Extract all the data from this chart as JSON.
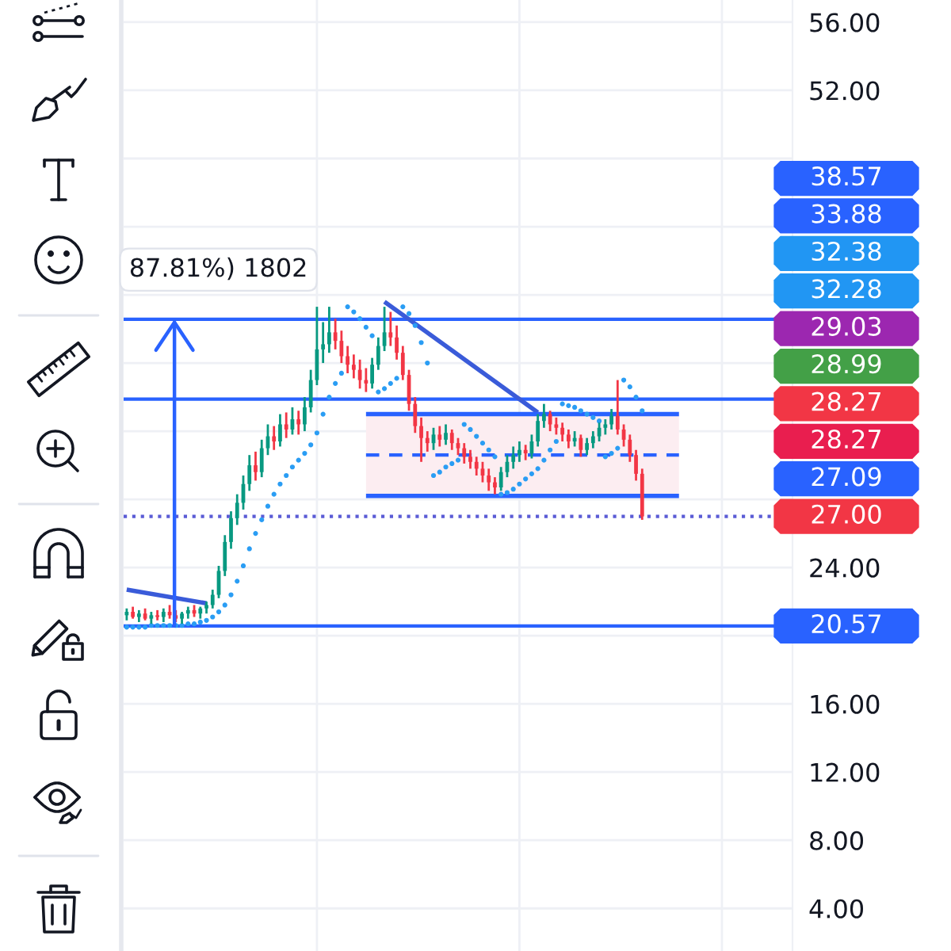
{
  "chart_data": {
    "type": "candlestick",
    "categories": [
      null,
      null,
      null,
      null,
      null,
      null,
      null,
      null,
      null,
      null,
      null,
      null,
      null,
      null,
      null,
      null,
      null,
      null,
      null,
      null,
      null,
      null,
      null,
      null,
      null,
      null,
      null,
      null,
      null,
      null,
      null,
      null,
      null,
      null,
      null,
      null,
      null,
      null,
      null,
      null,
      null,
      null,
      null,
      null,
      null,
      null,
      null,
      null,
      null,
      null,
      null,
      null,
      null,
      null,
      null,
      null,
      null,
      null,
      null,
      null,
      null,
      null,
      null,
      null,
      null,
      null,
      null,
      null,
      null,
      null,
      null,
      null,
      null,
      null,
      null,
      null,
      null,
      null,
      null,
      null,
      null,
      null,
      null,
      null,
      null,
      null,
      null,
      null,
      null,
      null,
      null,
      null,
      null,
      null,
      null,
      null,
      null,
      null,
      null,
      null,
      null,
      null,
      null,
      null,
      null,
      null,
      null,
      null,
      null
    ],
    "ohlc": [
      [
        21.2,
        21.6,
        20.9,
        21.4
      ],
      [
        21.4,
        21.7,
        21.0,
        21.1
      ],
      [
        21.1,
        21.5,
        20.8,
        21.3
      ],
      [
        21.3,
        21.6,
        20.9,
        21.0
      ],
      [
        21.0,
        21.4,
        20.7,
        21.2
      ],
      [
        21.2,
        21.5,
        20.9,
        21.1
      ],
      [
        21.1,
        21.6,
        20.8,
        21.4
      ],
      [
        21.4,
        21.8,
        21.0,
        21.2
      ],
      [
        21.2,
        21.5,
        20.8,
        21.0
      ],
      [
        21.0,
        21.4,
        20.7,
        21.3
      ],
      [
        21.3,
        21.7,
        21.0,
        21.5
      ],
      [
        21.5,
        21.8,
        21.1,
        21.3
      ],
      [
        21.3,
        21.7,
        21.0,
        21.6
      ],
      [
        21.6,
        22.0,
        21.3,
        21.8
      ],
      [
        21.8,
        22.7,
        21.6,
        22.4
      ],
      [
        22.4,
        24.1,
        22.2,
        23.8
      ],
      [
        23.8,
        25.9,
        23.5,
        25.5
      ],
      [
        25.5,
        27.3,
        25.1,
        26.9
      ],
      [
        26.9,
        28.3,
        26.5,
        27.8
      ],
      [
        27.8,
        29.4,
        27.4,
        28.9
      ],
      [
        28.9,
        30.6,
        28.5,
        30.0
      ],
      [
        30.0,
        30.8,
        29.1,
        29.6
      ],
      [
        29.6,
        31.5,
        29.3,
        31.0
      ],
      [
        31.0,
        32.4,
        30.6,
        31.7
      ],
      [
        31.7,
        32.3,
        30.9,
        31.4
      ],
      [
        31.4,
        33.0,
        31.1,
        32.4
      ],
      [
        32.4,
        33.1,
        31.6,
        32.1
      ],
      [
        32.1,
        33.4,
        31.8,
        32.7
      ],
      [
        32.7,
        33.2,
        31.8,
        32.4
      ],
      [
        32.4,
        34.0,
        32.0,
        33.4
      ],
      [
        33.4,
        35.6,
        33.1,
        35.0
      ],
      [
        35.0,
        39.3,
        34.7,
        36.8
      ],
      [
        36.8,
        38.4,
        36.0,
        37.1
      ],
      [
        37.1,
        39.3,
        36.6,
        37.8
      ],
      [
        37.8,
        38.6,
        36.8,
        37.3
      ],
      [
        37.3,
        37.9,
        36.0,
        36.4
      ],
      [
        36.4,
        37.0,
        35.4,
        35.9
      ],
      [
        35.9,
        36.5,
        35.1,
        35.6
      ],
      [
        35.6,
        36.2,
        34.5,
        35.0
      ],
      [
        35.0,
        35.7,
        34.3,
        34.8
      ],
      [
        34.8,
        36.3,
        34.5,
        35.9
      ],
      [
        35.9,
        37.5,
        35.6,
        37.0
      ],
      [
        37.0,
        39.3,
        36.7,
        37.8
      ],
      [
        37.8,
        39.0,
        37.0,
        37.5
      ],
      [
        37.5,
        38.2,
        36.2,
        36.6
      ],
      [
        36.6,
        37.0,
        35.0,
        35.3
      ],
      [
        35.3,
        35.6,
        33.2,
        33.6
      ],
      [
        33.6,
        34.0,
        31.9,
        32.3
      ],
      [
        32.3,
        32.8,
        30.2,
        31.6
      ],
      [
        31.6,
        32.0,
        30.8,
        31.3
      ],
      [
        31.3,
        32.2,
        30.9,
        31.8
      ],
      [
        31.8,
        32.3,
        31.1,
        31.5
      ],
      [
        31.5,
        32.4,
        31.2,
        31.9
      ],
      [
        31.9,
        32.1,
        30.9,
        31.3
      ],
      [
        31.3,
        31.6,
        30.6,
        31.0
      ],
      [
        31.0,
        31.3,
        30.1,
        30.5
      ],
      [
        30.5,
        30.9,
        29.8,
        30.2
      ],
      [
        30.2,
        30.5,
        29.4,
        29.8
      ],
      [
        29.8,
        30.2,
        29.0,
        29.4
      ],
      [
        29.4,
        29.8,
        28.5,
        29.0
      ],
      [
        29.0,
        29.3,
        28.3,
        28.7
      ],
      [
        28.7,
        29.9,
        28.5,
        29.6
      ],
      [
        29.6,
        30.6,
        29.3,
        30.2
      ],
      [
        30.2,
        31.1,
        29.8,
        30.6
      ],
      [
        30.6,
        31.4,
        30.2,
        30.9
      ],
      [
        30.9,
        31.2,
        30.3,
        30.7
      ],
      [
        30.7,
        31.8,
        30.4,
        31.4
      ],
      [
        31.4,
        33.0,
        31.1,
        32.6
      ],
      [
        32.6,
        33.6,
        32.2,
        33.0
      ],
      [
        33.0,
        33.2,
        32.0,
        32.4
      ],
      [
        32.4,
        32.8,
        31.8,
        32.2
      ],
      [
        32.2,
        32.5,
        31.4,
        31.8
      ],
      [
        31.8,
        32.1,
        31.0,
        31.4
      ],
      [
        31.4,
        32.0,
        31.1,
        31.6
      ],
      [
        31.6,
        31.8,
        30.5,
        30.9
      ],
      [
        30.9,
        31.6,
        30.6,
        31.3
      ],
      [
        31.3,
        32.0,
        31.0,
        31.7
      ],
      [
        31.7,
        32.5,
        31.4,
        32.2
      ],
      [
        32.2,
        32.7,
        31.8,
        32.4
      ],
      [
        32.4,
        33.3,
        32.1,
        32.9
      ],
      [
        32.9,
        35.0,
        31.8,
        32.1
      ],
      [
        32.1,
        32.4,
        31.1,
        31.5
      ],
      [
        31.5,
        31.8,
        30.2,
        30.6
      ],
      [
        30.6,
        30.9,
        29.1,
        29.5
      ],
      [
        29.5,
        29.8,
        26.8,
        27.0
      ],
      null,
      null,
      null,
      null,
      null,
      null,
      null,
      null,
      null,
      null,
      null,
      null,
      null,
      null,
      null,
      null,
      null,
      null,
      null,
      null,
      null,
      null,
      null,
      null
    ],
    "colors": [
      "#089981",
      "#f23645",
      "#089981",
      "#f23645",
      "#089981",
      "#f23645",
      "#089981",
      "#f23645",
      "#f23645",
      "#089981",
      "#089981",
      "#f23645",
      "#089981",
      "#089981",
      "#089981",
      "#089981",
      "#089981",
      "#089981",
      "#089981",
      "#089981",
      "#089981",
      "#f23645",
      "#089981",
      "#089981",
      "#f23645",
      "#089981",
      "#f23645",
      "#089981",
      "#f23645",
      "#089981",
      "#089981",
      "#089981",
      "#089981",
      "#089981",
      "#f23645",
      "#f23645",
      "#f23645",
      "#f23645",
      "#f23645",
      "#f23645",
      "#089981",
      "#089981",
      "#089981",
      "#f23645",
      "#f23645",
      "#f23645",
      "#f23645",
      "#f23645",
      "#f23645",
      "#f23645",
      "#089981",
      "#f23645",
      "#089981",
      "#f23645",
      "#f23645",
      "#f23645",
      "#f23645",
      "#f23645",
      "#f23645",
      "#f23645",
      "#f23645",
      "#089981",
      "#089981",
      "#089981",
      "#089981",
      "#f23645",
      "#089981",
      "#089981",
      "#089981",
      "#f23645",
      "#f23645",
      "#f23645",
      "#f23645",
      "#089981",
      "#f23645",
      "#089981",
      "#089981",
      "#089981",
      "#089981",
      "#089981",
      "#f23645",
      "#f23645",
      "#f23645",
      "#f23645",
      "#f23645",
      null,
      null,
      null,
      null,
      null,
      null,
      null,
      null,
      null,
      null,
      null,
      null,
      null,
      null,
      null,
      null,
      null,
      null,
      null,
      null,
      null,
      null,
      null,
      null
    ],
    "series": [
      {
        "type": "scatter",
        "marker": "circle",
        "color": "#2a9df4",
        "values": [
          20.5,
          20.5,
          20.5,
          20.5,
          20.6,
          20.6,
          20.6,
          20.6,
          20.6,
          20.6,
          20.7,
          20.7,
          20.8,
          20.9,
          21.1,
          21.4,
          21.8,
          22.4,
          23.2,
          24.1,
          25.1,
          26.0,
          26.8,
          27.6,
          28.3,
          28.9,
          29.4,
          29.9,
          30.3,
          30.7,
          31.2,
          31.9,
          33.0,
          34.0,
          34.8,
          35.4,
          39.3,
          39.0,
          38.6,
          38.1,
          37.6,
          34.3,
          34.5,
          34.8,
          35.1,
          39.3,
          38.9,
          38.2,
          37.2,
          36.0,
          29.4,
          29.6,
          29.9,
          30.1,
          30.3,
          32.4,
          32.1,
          31.7,
          31.3,
          30.9,
          30.5,
          28.3,
          28.4,
          28.6,
          28.9,
          29.2,
          29.5,
          29.8,
          30.3,
          30.9,
          31.4,
          33.6,
          33.5,
          33.4,
          33.2,
          33.0,
          32.8,
          32.6,
          30.5,
          30.7,
          31.0,
          35.0,
          34.6,
          34.0,
          33.2,
          null,
          null,
          null,
          null,
          null,
          null,
          null,
          null,
          null,
          null,
          null,
          null,
          null,
          null,
          null,
          null,
          null,
          null,
          null,
          null,
          null,
          null,
          null,
          null
        ]
      },
      {
        "type": "line",
        "color": "#3a5bd9",
        "values": [
          null,
          null,
          null,
          null,
          null,
          null,
          null,
          null,
          null,
          null,
          null,
          null,
          null,
          null,
          null,
          null,
          null,
          null,
          null,
          null,
          null,
          null,
          null,
          null,
          null,
          null,
          null,
          null,
          null,
          null,
          null,
          null,
          null,
          null,
          null,
          null,
          null,
          null,
          null,
          null,
          null,
          null,
          39.6,
          null,
          null,
          null,
          null,
          null,
          null,
          null,
          null,
          null,
          null,
          null,
          null,
          null,
          null,
          null,
          null,
          null,
          null,
          null,
          null,
          null,
          null,
          null,
          null,
          33.1,
          null,
          null,
          null,
          null,
          null,
          null,
          null,
          null,
          null,
          null,
          null,
          null,
          null,
          null,
          null,
          null,
          null,
          null,
          null,
          null,
          null,
          null,
          null,
          null,
          null,
          null,
          null,
          null,
          null,
          null,
          null,
          null,
          null,
          null,
          null,
          null,
          null,
          null,
          null,
          null,
          null
        ]
      },
      {
        "type": "line",
        "color": "#3a5bd9",
        "values": [
          22.7,
          null,
          null,
          null,
          null,
          null,
          null,
          null,
          null,
          null,
          null,
          null,
          null,
          21.9,
          null,
          null,
          null,
          null,
          null,
          null,
          null,
          null,
          null,
          null,
          null,
          null,
          null,
          null,
          null,
          null,
          null,
          null,
          null,
          null,
          null,
          null,
          null,
          null,
          null,
          null,
          null,
          null,
          null,
          null,
          null,
          null,
          null,
          null,
          null,
          null,
          null,
          null,
          null,
          null,
          null,
          null,
          null,
          null,
          null,
          null,
          null,
          null,
          null,
          null,
          null,
          null,
          null,
          null,
          null,
          null,
          null,
          null,
          null,
          null,
          null,
          null,
          null,
          null,
          null,
          null,
          null,
          null,
          null,
          null,
          null,
          null,
          null,
          null,
          null,
          null,
          null,
          null,
          null,
          null,
          null,
          null,
          null,
          null,
          null,
          null,
          null,
          null,
          null,
          null,
          null,
          null,
          null,
          null,
          null
        ]
      },
      {
        "type": "line",
        "color": "#2962ff",
        "values": [
          null,
          null,
          null,
          null,
          null,
          null,
          null,
          null,
          null,
          null,
          null,
          null,
          null,
          null,
          null,
          null,
          null,
          null,
          null,
          null,
          null,
          null,
          null,
          null,
          null,
          null,
          null,
          null,
          null,
          null,
          null,
          null,
          null,
          null,
          null,
          null,
          null,
          null,
          null,
          33.0,
          33.0,
          33.0,
          33.0,
          33.0,
          33.0,
          33.0,
          33.0,
          33.0,
          33.0,
          33.0,
          33.0,
          33.0,
          33.0,
          33.0,
          33.0,
          33.0,
          33.0,
          33.0,
          33.0,
          33.0,
          33.0,
          33.0,
          33.0,
          33.0,
          33.0,
          33.0,
          33.0,
          33.0,
          33.0,
          33.0,
          33.0,
          33.0,
          33.0,
          33.0,
          33.0,
          33.0,
          33.0,
          33.0,
          33.0,
          33.0,
          33.0,
          33.0,
          33.0,
          33.0,
          33.0,
          33.0,
          33.0,
          33.0,
          33.0,
          33.0,
          33.0,
          null,
          null,
          null,
          null,
          null,
          null,
          null,
          null,
          null,
          null,
          null,
          null,
          null,
          null,
          null,
          null,
          null,
          null
        ]
      },
      {
        "type": "line",
        "color": "#2962ff",
        "values": [
          null,
          null,
          null,
          null,
          null,
          null,
          null,
          null,
          null,
          null,
          null,
          null,
          null,
          null,
          null,
          null,
          null,
          null,
          null,
          null,
          null,
          null,
          null,
          null,
          null,
          null,
          null,
          null,
          null,
          null,
          null,
          null,
          null,
          null,
          null,
          null,
          null,
          null,
          null,
          28.2,
          28.2,
          28.2,
          28.2,
          28.2,
          28.2,
          28.2,
          28.2,
          28.2,
          28.2,
          28.2,
          28.2,
          28.2,
          28.2,
          28.2,
          28.2,
          28.2,
          28.2,
          28.2,
          28.2,
          28.2,
          28.2,
          28.2,
          28.2,
          28.2,
          28.2,
          28.2,
          28.2,
          28.2,
          28.2,
          28.2,
          28.2,
          28.2,
          28.2,
          28.2,
          28.2,
          28.2,
          28.2,
          28.2,
          28.2,
          28.2,
          28.2,
          28.2,
          28.2,
          28.2,
          28.2,
          28.2,
          28.2,
          28.2,
          28.2,
          28.2,
          28.2,
          null,
          null,
          null,
          null,
          null,
          null,
          null,
          null,
          null,
          null,
          null,
          null,
          null,
          null,
          null,
          null,
          null,
          null
        ]
      },
      {
        "type": "line",
        "line_style": "dashed",
        "color": "#2962ff",
        "values": [
          null,
          null,
          null,
          null,
          null,
          null,
          null,
          null,
          null,
          null,
          null,
          null,
          null,
          null,
          null,
          null,
          null,
          null,
          null,
          null,
          null,
          null,
          null,
          null,
          null,
          null,
          null,
          null,
          null,
          null,
          null,
          null,
          null,
          null,
          null,
          null,
          null,
          null,
          null,
          30.6,
          30.6,
          30.6,
          30.6,
          30.6,
          30.6,
          30.6,
          30.6,
          30.6,
          30.6,
          30.6,
          30.6,
          30.6,
          30.6,
          30.6,
          30.6,
          30.6,
          30.6,
          30.6,
          30.6,
          30.6,
          30.6,
          30.6,
          30.6,
          30.6,
          30.6,
          30.6,
          30.6,
          30.6,
          30.6,
          30.6,
          30.6,
          30.6,
          30.6,
          30.6,
          30.6,
          30.6,
          30.6,
          30.6,
          30.6,
          30.6,
          30.6,
          30.6,
          30.6,
          30.6,
          30.6,
          30.6,
          30.6,
          30.6,
          30.6,
          30.6,
          30.6,
          null,
          null,
          null,
          null,
          null,
          null,
          null,
          null,
          null,
          null,
          null,
          null,
          null,
          null,
          null,
          null,
          null,
          null
        ],
        "lower": [
          null,
          null,
          null,
          null,
          null,
          null,
          null,
          null,
          null,
          null,
          null,
          null,
          null,
          null,
          null,
          null,
          null,
          null,
          null,
          null,
          null,
          null,
          null,
          null,
          null,
          null,
          null,
          null,
          null,
          null,
          null,
          null,
          null,
          null,
          null,
          null,
          null,
          null,
          null,
          28.2,
          28.2,
          28.2,
          28.2,
          28.2,
          28.2,
          28.2,
          28.2,
          28.2,
          28.2,
          28.2,
          28.2,
          28.2,
          28.2,
          28.2,
          28.2,
          28.2,
          28.2,
          28.2,
          28.2,
          28.2,
          28.2,
          28.2,
          28.2,
          28.2,
          28.2,
          28.2,
          28.2,
          28.2,
          28.2,
          28.2,
          28.2,
          28.2,
          28.2,
          28.2,
          28.2,
          28.2,
          28.2,
          28.2,
          28.2,
          28.2,
          28.2,
          28.2,
          28.2,
          28.2,
          28.2,
          28.2,
          28.2,
          28.2,
          28.2,
          28.2,
          28.2,
          null,
          null,
          null,
          null,
          null,
          null,
          null,
          null,
          null,
          null,
          null,
          null,
          null,
          null,
          null,
          null,
          null,
          null
        ],
        "upper": [
          null,
          null,
          null,
          null,
          null,
          null,
          null,
          null,
          null,
          null,
          null,
          null,
          null,
          null,
          null,
          null,
          null,
          null,
          null,
          null,
          null,
          null,
          null,
          null,
          null,
          null,
          null,
          null,
          null,
          null,
          null,
          null,
          null,
          null,
          null,
          null,
          null,
          null,
          null,
          33.0,
          33.0,
          33.0,
          33.0,
          33.0,
          33.0,
          33.0,
          33.0,
          33.0,
          33.0,
          33.0,
          33.0,
          33.0,
          33.0,
          33.0,
          33.0,
          33.0,
          33.0,
          33.0,
          33.0,
          33.0,
          33.0,
          33.0,
          33.0,
          33.0,
          33.0,
          33.0,
          33.0,
          33.0,
          33.0,
          33.0,
          33.0,
          33.0,
          33.0,
          33.0,
          33.0,
          33.0,
          33.0,
          33.0,
          33.0,
          33.0,
          33.0,
          33.0,
          33.0,
          33.0,
          33.0,
          33.0,
          33.0,
          33.0,
          33.0,
          33.0,
          33.0,
          null,
          null,
          null,
          null,
          null,
          null,
          null,
          null,
          null,
          null,
          null,
          null,
          null,
          null,
          null,
          null,
          null,
          null
        ]
      }
    ],
    "ylim": [
      1.5,
      57.3
    ],
    "yticks": [
      {
        "value": 4,
        "label": "4.00"
      },
      {
        "value": 8,
        "label": "8.00"
      },
      {
        "value": 12,
        "label": "12.00"
      },
      {
        "value": 16,
        "label": "16.00"
      },
      {
        "value": 20,
        "label": null
      },
      {
        "value": 24,
        "label": "24.00"
      },
      {
        "value": 28,
        "label": null
      },
      {
        "value": 32,
        "label": null
      },
      {
        "value": 36,
        "label": null
      },
      {
        "value": 40,
        "label": null
      },
      {
        "value": 44,
        "label": null
      },
      {
        "value": 48,
        "label": null
      },
      {
        "value": 52,
        "label": "52.00"
      },
      {
        "value": 56,
        "label": "56.00"
      }
    ],
    "ref_lines": [
      {
        "axis": "y",
        "value": 38.57,
        "color": "#2962ff"
      },
      {
        "axis": "y",
        "value": 33.88,
        "color": "#2962ff"
      },
      {
        "axis": "y",
        "value": 27.0,
        "color": "#5b5cd6",
        "line_style": "dotted",
        "label": "27.00"
      },
      {
        "axis": "y",
        "value": 20.57,
        "color": "#2962ff",
        "label": "20.57"
      }
    ],
    "annotations": [
      {
        "text": "87.81%) 1802",
        "y": 38.57
      },
      "38.57",
      "33.88",
      "32.38",
      "32.28",
      "29.03",
      "28.99",
      "28.27",
      "28.27",
      "27.09"
    ],
    "grid": true,
    "tick_labels": "y"
  }
}
